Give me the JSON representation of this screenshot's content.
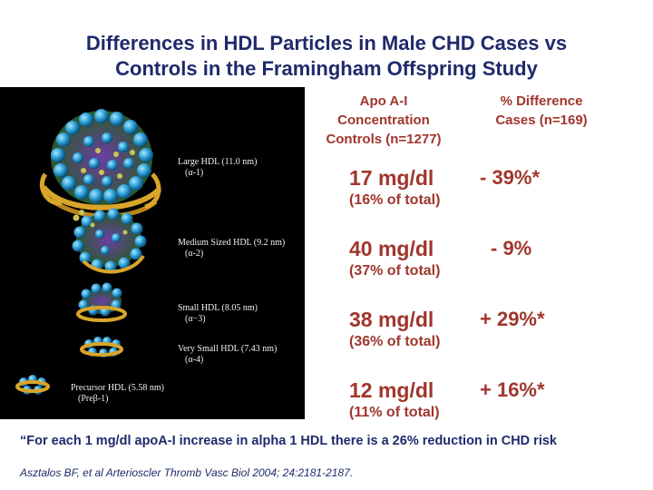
{
  "title": {
    "line1": "Differences in HDL Particles in Male CHD Cases vs",
    "line2": "Controls in the Framingham Offspring Study"
  },
  "figure": {
    "labels": [
      {
        "name": "Large HDL",
        "size": "(11.0 nm)",
        "subclass": "(α-1)"
      },
      {
        "name": "Medium Sized HDL",
        "size": "(9.2 nm)",
        "subclass": "(α-2)"
      },
      {
        "name": "Small HDL",
        "size": "(8.05 nm)",
        "subclass": "(α−3)"
      },
      {
        "name": "Very Small HDL",
        "size": "(7.43 nm)",
        "subclass": "(α-4)"
      },
      {
        "name": "Precursor HDL",
        "size": "(5.58 nm)",
        "subclass": "(Preβ-1)"
      }
    ]
  },
  "columns": {
    "apo_line1": "Apo A-I",
    "apo_line2": "Concentration",
    "apo_line3": "Controls  (n=1277)",
    "diff_line1": "% Difference",
    "diff_line2": "Cases (n=169)"
  },
  "rows": [
    {
      "conc": "17 mg/dl",
      "pct_total": "(16% of total)",
      "diff": "- 39%*"
    },
    {
      "conc": "40 mg/dl",
      "pct_total": "(37% of total)",
      "diff": "- 9%"
    },
    {
      "conc": "38 mg/dl",
      "pct_total": "(36% of total)",
      "diff": "+ 29%*"
    },
    {
      "conc": "12 mg/dl",
      "pct_total": "(11% of total)",
      "diff": "+ 16%*"
    }
  ],
  "quote": "“For each 1 mg/dl apoA-I increase in alpha 1 HDL there is a 26% reduction in CHD risk",
  "citation": "Asztalos BF, et al  Arterioscler Thromb Vasc Biol 2004; 24:2181-2187.",
  "colors": {
    "title": "#1f2a6b",
    "values": "#a0362d",
    "figure_bg": "#000000"
  }
}
